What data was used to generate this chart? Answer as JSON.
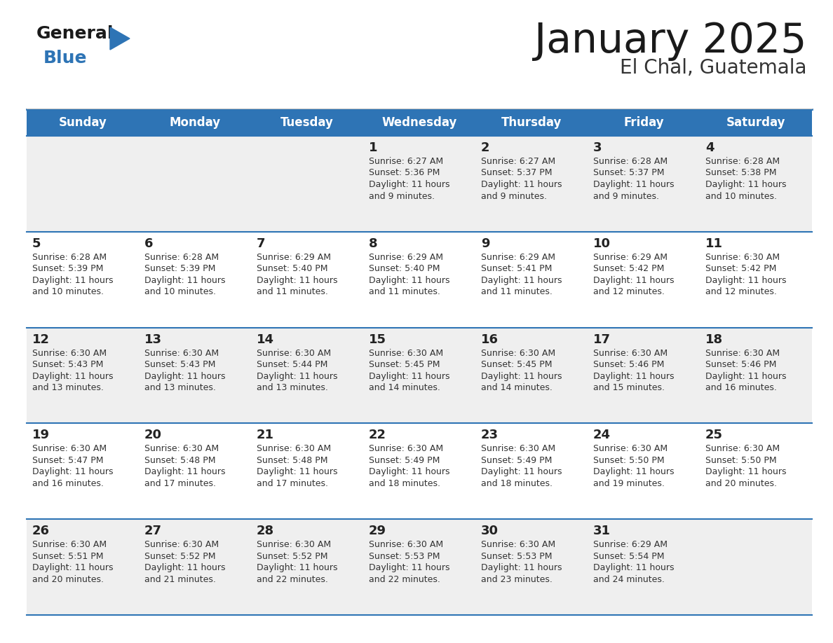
{
  "title": "January 2025",
  "subtitle": "El Chal, Guatemala",
  "days_of_week": [
    "Sunday",
    "Monday",
    "Tuesday",
    "Wednesday",
    "Thursday",
    "Friday",
    "Saturday"
  ],
  "header_bg": "#2E74B5",
  "header_text": "#FFFFFF",
  "row_bg_odd": "#EFEFEF",
  "row_bg_even": "#FFFFFF",
  "cell_border": "#2E74B5",
  "day_num_color": "#222222",
  "info_color": "#333333",
  "title_color": "#1a1a1a",
  "subtitle_color": "#333333",
  "logo_general_color": "#1a1a1a",
  "logo_blue_color": "#2E74B5",
  "calendar_data": [
    [
      null,
      null,
      null,
      {
        "day": 1,
        "sunrise": "6:27 AM",
        "sunset": "5:36 PM",
        "daylight_l1": "Daylight: 11 hours",
        "daylight_l2": "and 9 minutes."
      },
      {
        "day": 2,
        "sunrise": "6:27 AM",
        "sunset": "5:37 PM",
        "daylight_l1": "Daylight: 11 hours",
        "daylight_l2": "and 9 minutes."
      },
      {
        "day": 3,
        "sunrise": "6:28 AM",
        "sunset": "5:37 PM",
        "daylight_l1": "Daylight: 11 hours",
        "daylight_l2": "and 9 minutes."
      },
      {
        "day": 4,
        "sunrise": "6:28 AM",
        "sunset": "5:38 PM",
        "daylight_l1": "Daylight: 11 hours",
        "daylight_l2": "and 10 minutes."
      }
    ],
    [
      {
        "day": 5,
        "sunrise": "6:28 AM",
        "sunset": "5:39 PM",
        "daylight_l1": "Daylight: 11 hours",
        "daylight_l2": "and 10 minutes."
      },
      {
        "day": 6,
        "sunrise": "6:28 AM",
        "sunset": "5:39 PM",
        "daylight_l1": "Daylight: 11 hours",
        "daylight_l2": "and 10 minutes."
      },
      {
        "day": 7,
        "sunrise": "6:29 AM",
        "sunset": "5:40 PM",
        "daylight_l1": "Daylight: 11 hours",
        "daylight_l2": "and 11 minutes."
      },
      {
        "day": 8,
        "sunrise": "6:29 AM",
        "sunset": "5:40 PM",
        "daylight_l1": "Daylight: 11 hours",
        "daylight_l2": "and 11 minutes."
      },
      {
        "day": 9,
        "sunrise": "6:29 AM",
        "sunset": "5:41 PM",
        "daylight_l1": "Daylight: 11 hours",
        "daylight_l2": "and 11 minutes."
      },
      {
        "day": 10,
        "sunrise": "6:29 AM",
        "sunset": "5:42 PM",
        "daylight_l1": "Daylight: 11 hours",
        "daylight_l2": "and 12 minutes."
      },
      {
        "day": 11,
        "sunrise": "6:30 AM",
        "sunset": "5:42 PM",
        "daylight_l1": "Daylight: 11 hours",
        "daylight_l2": "and 12 minutes."
      }
    ],
    [
      {
        "day": 12,
        "sunrise": "6:30 AM",
        "sunset": "5:43 PM",
        "daylight_l1": "Daylight: 11 hours",
        "daylight_l2": "and 13 minutes."
      },
      {
        "day": 13,
        "sunrise": "6:30 AM",
        "sunset": "5:43 PM",
        "daylight_l1": "Daylight: 11 hours",
        "daylight_l2": "and 13 minutes."
      },
      {
        "day": 14,
        "sunrise": "6:30 AM",
        "sunset": "5:44 PM",
        "daylight_l1": "Daylight: 11 hours",
        "daylight_l2": "and 13 minutes."
      },
      {
        "day": 15,
        "sunrise": "6:30 AM",
        "sunset": "5:45 PM",
        "daylight_l1": "Daylight: 11 hours",
        "daylight_l2": "and 14 minutes."
      },
      {
        "day": 16,
        "sunrise": "6:30 AM",
        "sunset": "5:45 PM",
        "daylight_l1": "Daylight: 11 hours",
        "daylight_l2": "and 14 minutes."
      },
      {
        "day": 17,
        "sunrise": "6:30 AM",
        "sunset": "5:46 PM",
        "daylight_l1": "Daylight: 11 hours",
        "daylight_l2": "and 15 minutes."
      },
      {
        "day": 18,
        "sunrise": "6:30 AM",
        "sunset": "5:46 PM",
        "daylight_l1": "Daylight: 11 hours",
        "daylight_l2": "and 16 minutes."
      }
    ],
    [
      {
        "day": 19,
        "sunrise": "6:30 AM",
        "sunset": "5:47 PM",
        "daylight_l1": "Daylight: 11 hours",
        "daylight_l2": "and 16 minutes."
      },
      {
        "day": 20,
        "sunrise": "6:30 AM",
        "sunset": "5:48 PM",
        "daylight_l1": "Daylight: 11 hours",
        "daylight_l2": "and 17 minutes."
      },
      {
        "day": 21,
        "sunrise": "6:30 AM",
        "sunset": "5:48 PM",
        "daylight_l1": "Daylight: 11 hours",
        "daylight_l2": "and 17 minutes."
      },
      {
        "day": 22,
        "sunrise": "6:30 AM",
        "sunset": "5:49 PM",
        "daylight_l1": "Daylight: 11 hours",
        "daylight_l2": "and 18 minutes."
      },
      {
        "day": 23,
        "sunrise": "6:30 AM",
        "sunset": "5:49 PM",
        "daylight_l1": "Daylight: 11 hours",
        "daylight_l2": "and 18 minutes."
      },
      {
        "day": 24,
        "sunrise": "6:30 AM",
        "sunset": "5:50 PM",
        "daylight_l1": "Daylight: 11 hours",
        "daylight_l2": "and 19 minutes."
      },
      {
        "day": 25,
        "sunrise": "6:30 AM",
        "sunset": "5:50 PM",
        "daylight_l1": "Daylight: 11 hours",
        "daylight_l2": "and 20 minutes."
      }
    ],
    [
      {
        "day": 26,
        "sunrise": "6:30 AM",
        "sunset": "5:51 PM",
        "daylight_l1": "Daylight: 11 hours",
        "daylight_l2": "and 20 minutes."
      },
      {
        "day": 27,
        "sunrise": "6:30 AM",
        "sunset": "5:52 PM",
        "daylight_l1": "Daylight: 11 hours",
        "daylight_l2": "and 21 minutes."
      },
      {
        "day": 28,
        "sunrise": "6:30 AM",
        "sunset": "5:52 PM",
        "daylight_l1": "Daylight: 11 hours",
        "daylight_l2": "and 22 minutes."
      },
      {
        "day": 29,
        "sunrise": "6:30 AM",
        "sunset": "5:53 PM",
        "daylight_l1": "Daylight: 11 hours",
        "daylight_l2": "and 22 minutes."
      },
      {
        "day": 30,
        "sunrise": "6:30 AM",
        "sunset": "5:53 PM",
        "daylight_l1": "Daylight: 11 hours",
        "daylight_l2": "and 23 minutes."
      },
      {
        "day": 31,
        "sunrise": "6:29 AM",
        "sunset": "5:54 PM",
        "daylight_l1": "Daylight: 11 hours",
        "daylight_l2": "and 24 minutes."
      },
      null
    ]
  ]
}
